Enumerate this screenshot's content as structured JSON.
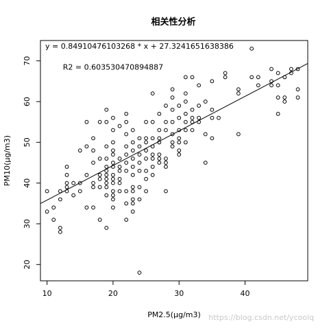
{
  "chart_data": {
    "type": "scatter",
    "title": "相关性分析",
    "xlabel": "PM2.5(μg/m3)",
    "ylabel": "PM10(μg/m3)",
    "xlim": [
      9,
      49.5
    ],
    "ylim": [
      16,
      75
    ],
    "x_ticks": [
      10,
      20,
      30,
      40
    ],
    "y_ticks": [
      20,
      30,
      40,
      50,
      60,
      70
    ],
    "grid": false,
    "legend": "none",
    "point_style": "open-circle",
    "regression": {
      "slope": 0.84910476103268,
      "intercept": 27.3241651638386
    },
    "annotations": [
      {
        "text": "y = 0.84910476103268 * x + 27.3241651638386",
        "x": 24,
        "y": 73
      },
      {
        "text": "R2 = 0.603530470894887",
        "x": 20,
        "y": 67.8
      }
    ],
    "points": [
      [
        10,
        38
      ],
      [
        10,
        33
      ],
      [
        11,
        34
      ],
      [
        11,
        31
      ],
      [
        12,
        38
      ],
      [
        12,
        36
      ],
      [
        12,
        29
      ],
      [
        12,
        28
      ],
      [
        13,
        44
      ],
      [
        13,
        42
      ],
      [
        13,
        40
      ],
      [
        13,
        39
      ],
      [
        13,
        38
      ],
      [
        14,
        40
      ],
      [
        14,
        37
      ],
      [
        15,
        48
      ],
      [
        15,
        38
      ],
      [
        15,
        40
      ],
      [
        16,
        55
      ],
      [
        16,
        49
      ],
      [
        16,
        42
      ],
      [
        16,
        34
      ],
      [
        17,
        51
      ],
      [
        17,
        48
      ],
      [
        17,
        45
      ],
      [
        17,
        40
      ],
      [
        17,
        39
      ],
      [
        17,
        34
      ],
      [
        18,
        55
      ],
      [
        18,
        46
      ],
      [
        18,
        42
      ],
      [
        18,
        41
      ],
      [
        18,
        39
      ],
      [
        18,
        31
      ],
      [
        19,
        58
      ],
      [
        19,
        55
      ],
      [
        19,
        49
      ],
      [
        19,
        46
      ],
      [
        19,
        44
      ],
      [
        19,
        43
      ],
      [
        19,
        42
      ],
      [
        19,
        41
      ],
      [
        19,
        40
      ],
      [
        19,
        39
      ],
      [
        19,
        37
      ],
      [
        19,
        29
      ],
      [
        20,
        56
      ],
      [
        20,
        53
      ],
      [
        20,
        50
      ],
      [
        20,
        48
      ],
      [
        20,
        47
      ],
      [
        20,
        45
      ],
      [
        20,
        44
      ],
      [
        20,
        42
      ],
      [
        20,
        41
      ],
      [
        20,
        40
      ],
      [
        20,
        38
      ],
      [
        20,
        37
      ],
      [
        20,
        36
      ],
      [
        20,
        34
      ],
      [
        21,
        46
      ],
      [
        21,
        44
      ],
      [
        21,
        43
      ],
      [
        21,
        41
      ],
      [
        21,
        40
      ],
      [
        21,
        38
      ],
      [
        21,
        54
      ],
      [
        22,
        57
      ],
      [
        22,
        55
      ],
      [
        22,
        52
      ],
      [
        22,
        49
      ],
      [
        22,
        47
      ],
      [
        22,
        45
      ],
      [
        22,
        43
      ],
      [
        22,
        38
      ],
      [
        22,
        35
      ],
      [
        22,
        31
      ],
      [
        23,
        53
      ],
      [
        23,
        50
      ],
      [
        23,
        48
      ],
      [
        23,
        46
      ],
      [
        23,
        44
      ],
      [
        23,
        42
      ],
      [
        23,
        39
      ],
      [
        23,
        38
      ],
      [
        23,
        36
      ],
      [
        23,
        35
      ],
      [
        23,
        33
      ],
      [
        24,
        51
      ],
      [
        24,
        49
      ],
      [
        24,
        47
      ],
      [
        24,
        45
      ],
      [
        24,
        43
      ],
      [
        24,
        39
      ],
      [
        24,
        36
      ],
      [
        24,
        18
      ],
      [
        25,
        55
      ],
      [
        25,
        51
      ],
      [
        25,
        50
      ],
      [
        25,
        48
      ],
      [
        25,
        46
      ],
      [
        25,
        43
      ],
      [
        25,
        41
      ],
      [
        25,
        38
      ],
      [
        26,
        62
      ],
      [
        26,
        55
      ],
      [
        26,
        51
      ],
      [
        26,
        49
      ],
      [
        26,
        47
      ],
      [
        26,
        46
      ],
      [
        26,
        44
      ],
      [
        26,
        42
      ],
      [
        27,
        57
      ],
      [
        27,
        53
      ],
      [
        27,
        51
      ],
      [
        27,
        50
      ],
      [
        27,
        47
      ],
      [
        27,
        46
      ],
      [
        27,
        45
      ],
      [
        28,
        59
      ],
      [
        28,
        55
      ],
      [
        28,
        53
      ],
      [
        28,
        46
      ],
      [
        28,
        45
      ],
      [
        28,
        44
      ],
      [
        28,
        38
      ],
      [
        29,
        63
      ],
      [
        29,
        61
      ],
      [
        29,
        58
      ],
      [
        29,
        55
      ],
      [
        29,
        52
      ],
      [
        29,
        50
      ],
      [
        29,
        49
      ],
      [
        30,
        59
      ],
      [
        30,
        56
      ],
      [
        30,
        53
      ],
      [
        30,
        51
      ],
      [
        30,
        50
      ],
      [
        30,
        48
      ],
      [
        30,
        47
      ],
      [
        31,
        66
      ],
      [
        31,
        62
      ],
      [
        31,
        60
      ],
      [
        31,
        57
      ],
      [
        31,
        55
      ],
      [
        31,
        53
      ],
      [
        31,
        50
      ],
      [
        32,
        66
      ],
      [
        32,
        58
      ],
      [
        32,
        56
      ],
      [
        32,
        55
      ],
      [
        32,
        53
      ],
      [
        33,
        64
      ],
      [
        33,
        59
      ],
      [
        33,
        56
      ],
      [
        33,
        55
      ],
      [
        34,
        60
      ],
      [
        34,
        52
      ],
      [
        34,
        45
      ],
      [
        35,
        65
      ],
      [
        35,
        58
      ],
      [
        35,
        56
      ],
      [
        35,
        51
      ],
      [
        36,
        56
      ],
      [
        37,
        67
      ],
      [
        37,
        66
      ],
      [
        39,
        63
      ],
      [
        39,
        62
      ],
      [
        39,
        52
      ],
      [
        41,
        73
      ],
      [
        41,
        66
      ],
      [
        42,
        66
      ],
      [
        42,
        64
      ],
      [
        44,
        68
      ],
      [
        44,
        65
      ],
      [
        44,
        64
      ],
      [
        45,
        67
      ],
      [
        45,
        64
      ],
      [
        45,
        61
      ],
      [
        45,
        57
      ],
      [
        46,
        66
      ],
      [
        46,
        61
      ],
      [
        46,
        60
      ],
      [
        47,
        68
      ],
      [
        47,
        67
      ],
      [
        48,
        68
      ],
      [
        48,
        63
      ],
      [
        48,
        61
      ]
    ]
  },
  "watermark": "https://blog.csdn.net/ycoolq"
}
